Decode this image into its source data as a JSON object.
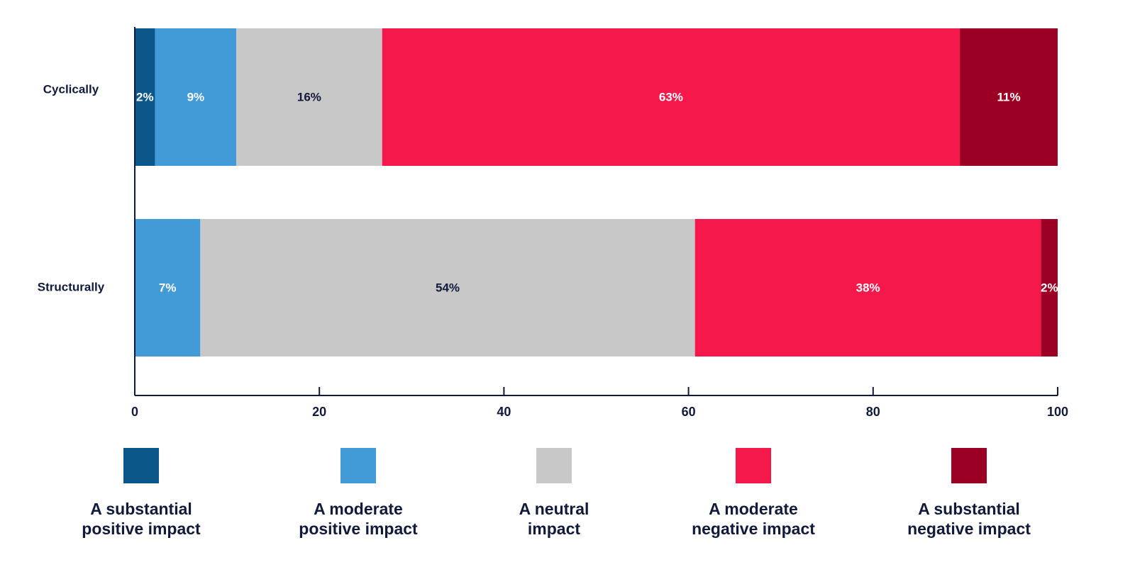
{
  "chart_data": {
    "type": "stacked-bar-horizontal",
    "categories": [
      "Cyclically",
      "Structurally"
    ],
    "series": [
      {
        "name": "A substantial positive impact",
        "color": "#0b578a",
        "values": [
          2.2,
          null
        ],
        "value_labels": [
          "2%",
          null
        ]
      },
      {
        "name": "A moderate positive impact",
        "color": "#429bd6",
        "values": [
          8.8,
          7.1
        ],
        "value_labels": [
          "9%",
          "7%"
        ]
      },
      {
        "name": "A neutral impact",
        "color": "#c8c8c8",
        "values": [
          15.8,
          53.6
        ],
        "value_labels": [
          "16%",
          "54%"
        ]
      },
      {
        "name": "A moderate negative impact",
        "color": "#f5194b",
        "values": [
          62.6,
          37.5
        ],
        "value_labels": [
          "63%",
          "38%"
        ]
      },
      {
        "name": "A substantial negative impact",
        "color": "#9b0024",
        "values": [
          10.6,
          1.8
        ],
        "value_labels": [
          "11%",
          "2%"
        ]
      }
    ],
    "xlim": [
      0,
      100
    ],
    "xticks": [
      0,
      20,
      40,
      60,
      80,
      100
    ]
  }
}
